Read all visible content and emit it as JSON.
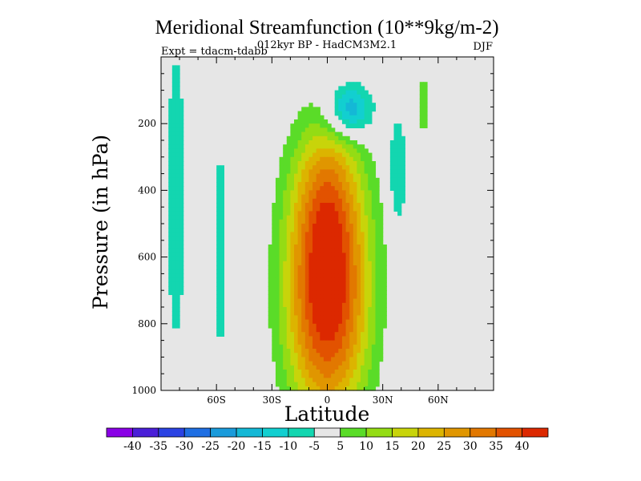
{
  "chart_data": {
    "type": "contour",
    "title": "Meridional Streamfunction (10**9kg/m-2)",
    "subtitle": "012kyr BP - HadCM3M2.1",
    "left_label": "Expt = tdacm-tdabb",
    "right_label": "DJF",
    "xlabel": "Latitude",
    "ylabel": "Pressure (in hPa)",
    "xlim": [
      -90,
      90
    ],
    "ylim": [
      0,
      1000
    ],
    "y_inverted": true,
    "x_ticks": [
      {
        "value": -60,
        "label": "60S"
      },
      {
        "value": -30,
        "label": "30S"
      },
      {
        "value": 0,
        "label": "0"
      },
      {
        "value": 30,
        "label": "30N"
      },
      {
        "value": 60,
        "label": "60N"
      }
    ],
    "y_ticks": [
      {
        "value": 200,
        "label": "200"
      },
      {
        "value": 400,
        "label": "400"
      },
      {
        "value": 600,
        "label": "600"
      },
      {
        "value": 800,
        "label": "800"
      },
      {
        "value": 1000,
        "label": "1000"
      }
    ],
    "levels": [
      -40,
      -35,
      -30,
      -25,
      -20,
      -15,
      -10,
      -5,
      5,
      10,
      15,
      20,
      25,
      30,
      35,
      40
    ],
    "colorbar_labels": [
      "-40",
      "-35",
      "-30",
      "-25",
      "-20",
      "-15",
      "-10",
      "-5",
      "5",
      "10",
      "15",
      "20",
      "25",
      "30",
      "35",
      "40"
    ],
    "colors": [
      "#8a00e6",
      "#4a1fd8",
      "#2b43e3",
      "#1f6fe3",
      "#1a9bdb",
      "#14b8d6",
      "#12cfd0",
      "#13d6b0",
      "#e6e6e6",
      "#5adc28",
      "#94dc14",
      "#c8d40a",
      "#dcb400",
      "#e09600",
      "#e27800",
      "#e25200",
      "#dc2800"
    ],
    "background": "#e6e6e6",
    "features": [
      {
        "name": "cell-core",
        "lat": 0,
        "p": 700,
        "value": 46,
        "half_width_deg": 22,
        "half_depth_hpa": 380,
        "sharpness": 2.2
      },
      {
        "name": "cell-extension",
        "lat": 0,
        "p": 380,
        "value": 12,
        "half_width_deg": 18,
        "half_depth_hpa": 200,
        "sharpness": 2
      },
      {
        "name": "upper-negative",
        "lat": 12,
        "p": 160,
        "value": -22,
        "half_width_deg": 12,
        "half_depth_hpa": 80,
        "sharpness": 2
      },
      {
        "name": "south-band",
        "lat": -82,
        "p": 420,
        "value": -8,
        "half_width_deg": 5,
        "half_depth_hpa": 460,
        "sharpness": 6
      },
      {
        "name": "south-band-2",
        "lat": -58,
        "p": 580,
        "value": -7,
        "half_width_deg": 3,
        "half_depth_hpa": 330,
        "sharpness": 6
      },
      {
        "name": "north-band",
        "lat": 38,
        "p": 340,
        "value": -8,
        "half_width_deg": 5,
        "half_depth_hpa": 170,
        "sharpness": 5
      },
      {
        "name": "north-band-2",
        "lat": 52,
        "p": 140,
        "value": 6,
        "half_width_deg": 3,
        "half_depth_hpa": 100,
        "sharpness": 6
      }
    ]
  }
}
